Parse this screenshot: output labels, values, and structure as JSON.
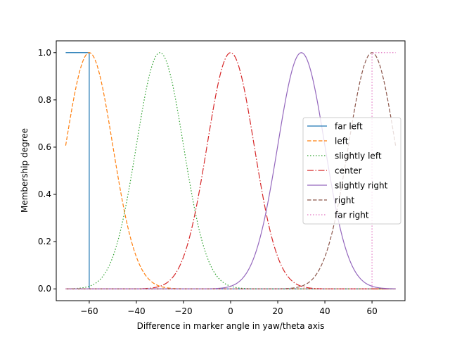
{
  "chart_data": {
    "type": "line",
    "title": "",
    "xlabel": "Difference in marker angle in yaw/theta axis",
    "ylabel": "Membership degree",
    "xlim": [
      -74,
      74
    ],
    "ylim": [
      -0.05,
      1.05
    ],
    "xticks": [
      -60,
      -40,
      -20,
      0,
      20,
      40,
      60
    ],
    "xtick_labels": [
      "−60",
      "−40",
      "−20",
      "0",
      "20",
      "40",
      "60"
    ],
    "yticks": [
      0.0,
      0.2,
      0.4,
      0.6,
      0.8,
      1.0
    ],
    "ytick_labels": [
      "0.0",
      "0.2",
      "0.4",
      "0.6",
      "0.8",
      "1.0"
    ],
    "grid": false,
    "legend_position": "center-right",
    "x_domain": [
      -70,
      70
    ],
    "series": [
      {
        "name": "far left",
        "kind": "zmf_step",
        "edge": -60,
        "color": "#1f77b4",
        "dash": ""
      },
      {
        "name": "left",
        "kind": "gauss",
        "mean": -60,
        "sigma": 10,
        "color": "#ff7f0e",
        "dash": "5.5,2.5"
      },
      {
        "name": "slightly left",
        "kind": "gauss",
        "mean": -30,
        "sigma": 10,
        "color": "#2ca02c",
        "dash": "1.5,2.5"
      },
      {
        "name": "center",
        "kind": "gauss",
        "mean": 0,
        "sigma": 10,
        "color": "#d62728",
        "dash": "9,2.5,1.5,2.5"
      },
      {
        "name": "slightly right",
        "kind": "gauss",
        "mean": 30,
        "sigma": 10,
        "color": "#9467bd",
        "dash": ""
      },
      {
        "name": "right",
        "kind": "gauss",
        "mean": 60,
        "sigma": 10,
        "color": "#8c564b",
        "dash": "5.5,2.5"
      },
      {
        "name": "far right",
        "kind": "smf_step",
        "edge": 60,
        "color": "#e377c2",
        "dash": "1.5,2.5"
      }
    ]
  }
}
